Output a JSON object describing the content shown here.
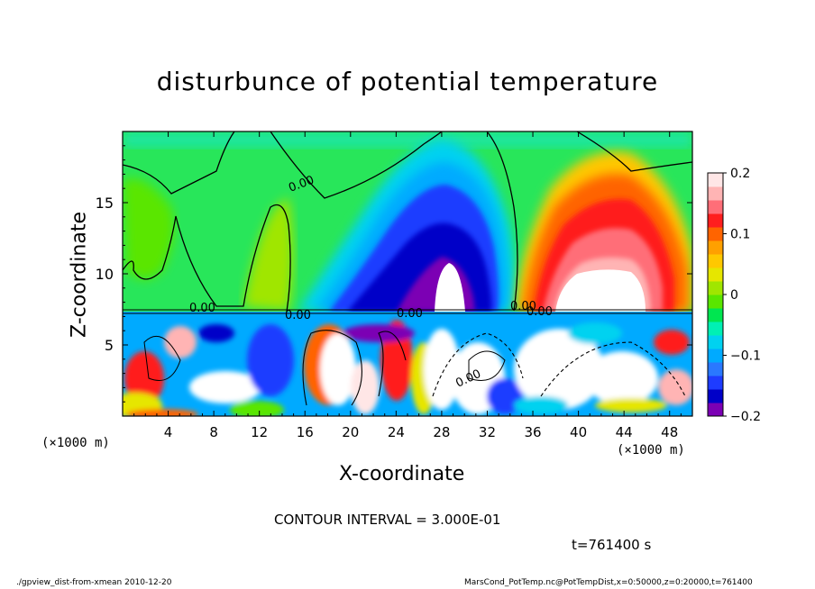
{
  "chart_data": {
    "type": "heatmap",
    "title": "disturbunce of potential temperature",
    "xlabel": "X-coordinate",
    "ylabel": "Z-coordinate",
    "x_unit": "(×1000 m)",
    "x_ticks": [
      4,
      8,
      12,
      16,
      20,
      24,
      28,
      32,
      36,
      40,
      44,
      48
    ],
    "y_ticks": [
      5,
      10,
      15
    ],
    "xlim": [
      0,
      50
    ],
    "ylim": [
      0,
      20
    ],
    "colorbar": {
      "ticks": [
        0.2,
        0.1,
        0,
        -0.1,
        -0.2
      ],
      "tick_labels": [
        "0.2",
        "0.1",
        "0",
        "−0.1",
        "−0.2"
      ],
      "range": [
        -0.2,
        0.2
      ],
      "levels": [
        "#7b00b4",
        "#0000c8",
        "#1e3cff",
        "#2a78ff",
        "#00aaff",
        "#00d2f0",
        "#00f0b4",
        "#00e650",
        "#5ae600",
        "#a0e600",
        "#e6e600",
        "#ffc800",
        "#ffa000",
        "#ff6400",
        "#ff1e1e",
        "#ff6e78",
        "#ffb4b4",
        "#ffe6e6"
      ]
    },
    "contour_labels": [
      "0.00",
      "0.00",
      "0.00",
      "0.00",
      "0.00",
      "0.00",
      "0.00"
    ],
    "contour_interval": "CONTOUR INTERVAL = 3.000E-01",
    "grid": false
  },
  "time_label": "t=761400 s",
  "footer": {
    "left": "./gpview_dist-from-xmean  2010-12-20",
    "right": "MarsCond_PotTemp.nc@PotTempDist,x=0:50000,z=0:20000,t=761400"
  }
}
